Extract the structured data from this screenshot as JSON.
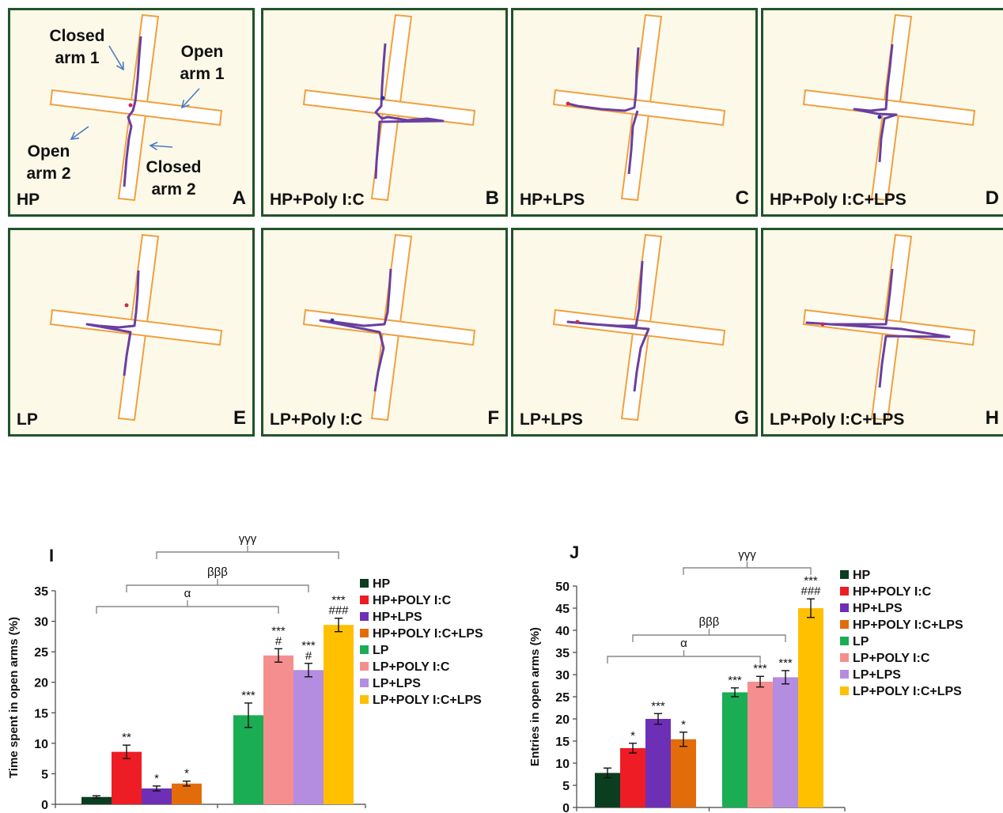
{
  "panels": [
    {
      "label": "HP",
      "letter": "A"
    },
    {
      "label": "HP+Poly I:C",
      "letter": "B"
    },
    {
      "label": "HP+LPS",
      "letter": "C"
    },
    {
      "label": "HP+Poly I:C+LPS",
      "letter": "D"
    },
    {
      "label": "LP",
      "letter": "E"
    },
    {
      "label": "LP+Poly I:C",
      "letter": "F"
    },
    {
      "label": "LP+LPS",
      "letter": "G"
    },
    {
      "label": "LP+Poly I:C+LPS",
      "letter": "H"
    }
  ],
  "annotations": {
    "closed_arm_1": "Closed arm 1",
    "open_arm_1": "Open arm 1",
    "open_arm_2": "Open arm 2",
    "closed_arm_2": "Closed arm 2"
  },
  "colors": {
    "panel_border": "#22532b",
    "panel_bg": "#fcf9e8",
    "maze_outline": "#f0a040",
    "track": "#6a3fa0"
  },
  "chart_data": [
    {
      "type": "bar",
      "panel_letter": "I",
      "ylabel": "Time spent in open arms (%)",
      "ylim": [
        0,
        35
      ],
      "yticks": [
        0,
        5,
        10,
        15,
        20,
        25,
        30,
        35
      ],
      "groups": [
        {
          "values": [
            1.2,
            8.6,
            2.6,
            3.4
          ],
          "errors": [
            0.2,
            1.1,
            0.4,
            0.4
          ],
          "sig": [
            "",
            "**",
            "*",
            "*"
          ]
        },
        {
          "values": [
            14.6,
            24.4,
            22.0,
            29.4
          ],
          "errors": [
            2.0,
            1.1,
            1.1,
            1.1
          ],
          "sig": [
            "***",
            "***\n#",
            "***\n#",
            "***\n###"
          ]
        }
      ],
      "brackets": [
        {
          "label": "α",
          "from": 0,
          "to": 5
        },
        {
          "label": "βββ",
          "from": 1,
          "to": 6
        },
        {
          "label": "γγγ",
          "from": 2,
          "to": 7
        }
      ]
    },
    {
      "type": "bar",
      "panel_letter": "J",
      "ylabel": "Entries in open arms (%)",
      "ylim": [
        0,
        50
      ],
      "yticks": [
        0,
        5,
        10,
        15,
        20,
        25,
        30,
        35,
        40,
        45,
        50
      ],
      "groups": [
        {
          "values": [
            7.8,
            13.4,
            20.0,
            15.4
          ],
          "errors": [
            1.1,
            1.1,
            1.2,
            1.6
          ],
          "sig": [
            "",
            "*",
            "***",
            "*"
          ]
        },
        {
          "values": [
            26.0,
            28.4,
            29.4,
            45.0
          ],
          "errors": [
            1.0,
            1.2,
            1.5,
            2.1
          ],
          "sig": [
            "***",
            "***",
            "***",
            "***\n###"
          ]
        }
      ],
      "brackets": [
        {
          "label": "α",
          "from": 0,
          "to": 5
        },
        {
          "label": "βββ",
          "from": 1,
          "to": 6
        },
        {
          "label": "γγγ",
          "from": 3,
          "to": 7
        }
      ]
    }
  ],
  "legend": {
    "entries": [
      {
        "name": "HP",
        "color": "#0b3d20"
      },
      {
        "name": "HP+POLY I:C",
        "color": "#ee1c24"
      },
      {
        "name": "HP+LPS",
        "color": "#6d2fb5"
      },
      {
        "name": "HP+POLY I:C+LPS",
        "color": "#e36c0a"
      },
      {
        "name": "LP",
        "color": "#1aad54"
      },
      {
        "name": "LP+POLY I:C",
        "color": "#f58f8f"
      },
      {
        "name": "LP+LPS",
        "color": "#b48ce0"
      },
      {
        "name": "LP+POLY I:C+LPS",
        "color": "#ffc000"
      }
    ]
  }
}
